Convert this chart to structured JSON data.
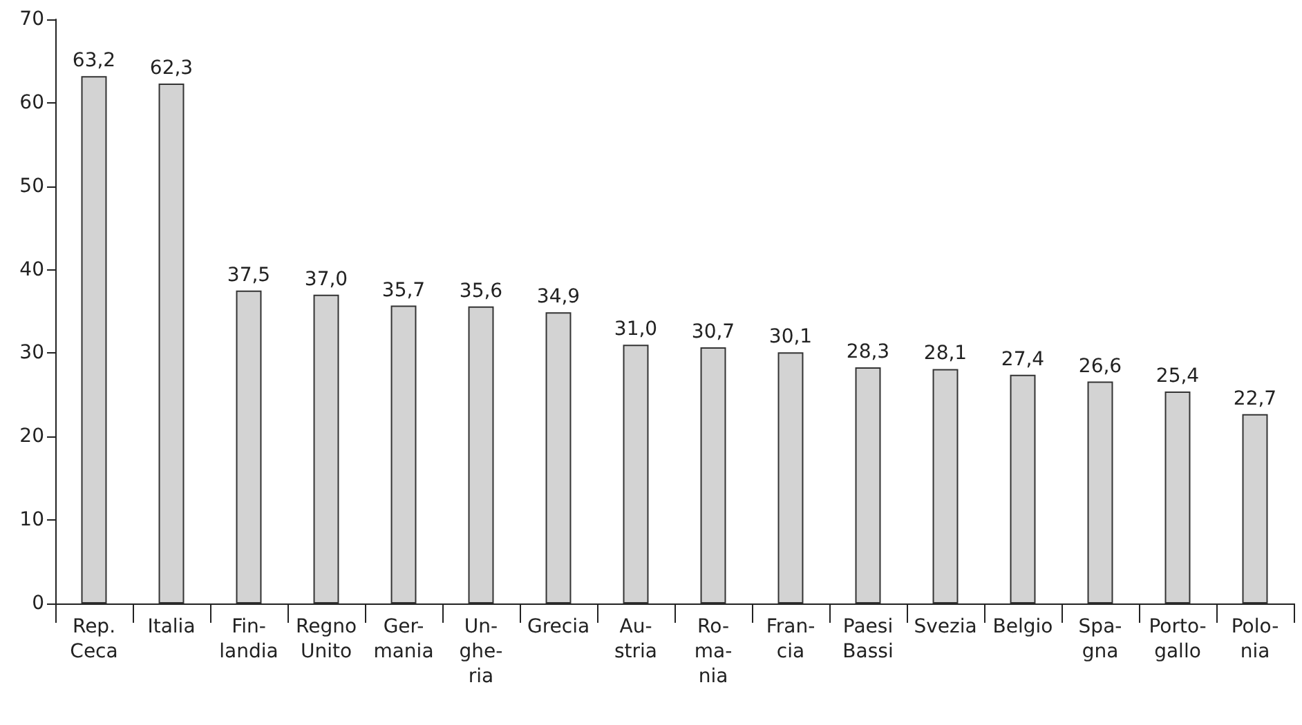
{
  "chart_data": {
    "type": "bar",
    "categories": [
      "Rep.\nCeca",
      "Italia",
      "Fin-\nlandia",
      "Regno\nUnito",
      "Ger-\nmania",
      "Un-\nghe-\nria",
      "Grecia",
      "Au-\nstria",
      "Ro-\nma-\nnia",
      "Fran-\ncia",
      "Paesi\nBassi",
      "Svezia",
      "Belgio",
      "Spa-\ngna",
      "Porto-\ngallo",
      "Polo-\nnia"
    ],
    "values": [
      63.2,
      62.3,
      37.5,
      37.0,
      35.7,
      35.6,
      34.9,
      31.0,
      30.7,
      30.1,
      28.3,
      28.1,
      27.4,
      26.6,
      25.4,
      22.7
    ],
    "value_labels": [
      "63,2",
      "62,3",
      "37,5",
      "37,0",
      "35,7",
      "35,6",
      "34,9",
      "31,0",
      "30,7",
      "30,1",
      "28,3",
      "28,1",
      "27,4",
      "26,6",
      "25,4",
      "22,7"
    ],
    "color": "#d3d3d3",
    "ylim": [
      0,
      70
    ],
    "yticks": [
      0,
      10,
      20,
      30,
      40,
      50,
      60,
      70
    ],
    "grid": false
  }
}
